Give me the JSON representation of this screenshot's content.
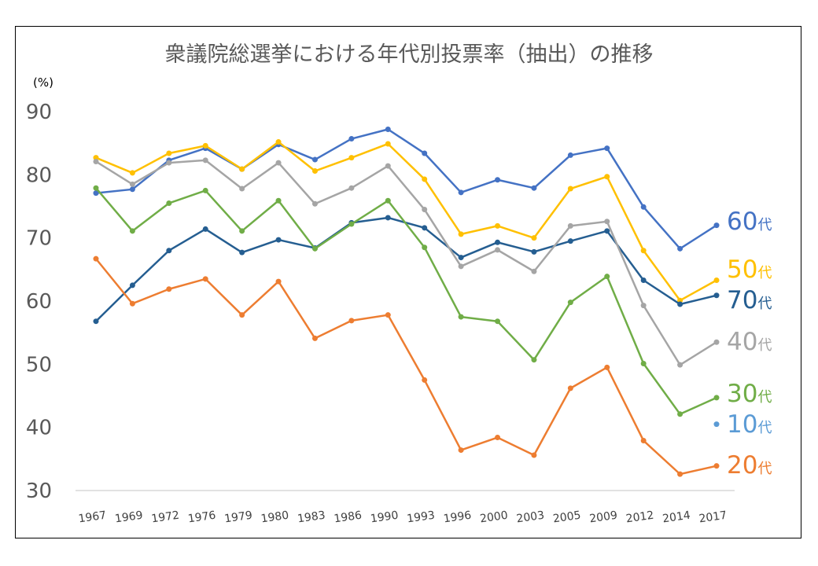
{
  "chart_data": {
    "type": "line",
    "title": "衆議院総選挙における年代別投票率（抽出）の推移",
    "ylabel": "(%)",
    "xlabel": "",
    "ylim": [
      30,
      90
    ],
    "yticks": [
      30,
      40,
      50,
      60,
      70,
      80,
      90
    ],
    "grid": false,
    "legend": "labels at line ends (right)",
    "categories": [
      "1967",
      "1969",
      "1972",
      "1976",
      "1979",
      "1980",
      "1983",
      "1986",
      "1990",
      "1993",
      "1996",
      "2000",
      "2003",
      "2005",
      "2009",
      "2012",
      "2014",
      "2017"
    ],
    "series": [
      {
        "name": "60代",
        "color": "#4472C4",
        "values": [
          77.1,
          77.7,
          82.3,
          84.2,
          80.9,
          84.8,
          82.4,
          85.7,
          87.2,
          83.4,
          77.2,
          79.2,
          77.9,
          83.1,
          84.2,
          74.9,
          68.3,
          72.0
        ]
      },
      {
        "name": "50代",
        "color": "#FFC000",
        "values": [
          82.7,
          80.3,
          83.4,
          84.6,
          80.9,
          85.2,
          80.6,
          82.7,
          84.9,
          79.3,
          70.6,
          71.9,
          70.0,
          77.8,
          79.7,
          68.0,
          60.1,
          63.3
        ]
      },
      {
        "name": "70代",
        "color": "#255E91",
        "values": [
          56.8,
          62.5,
          68.0,
          71.4,
          67.7,
          69.7,
          68.4,
          72.4,
          73.2,
          71.6,
          66.9,
          69.3,
          67.8,
          69.5,
          71.1,
          63.3,
          59.5,
          60.9
        ]
      },
      {
        "name": "40代",
        "color": "#A5A5A5",
        "values": [
          82.1,
          78.5,
          81.9,
          82.3,
          77.8,
          81.9,
          75.4,
          77.9,
          81.4,
          74.5,
          65.5,
          68.1,
          64.7,
          71.9,
          72.6,
          59.3,
          49.9,
          53.5
        ]
      },
      {
        "name": "30代",
        "color": "#70AD47",
        "values": [
          77.9,
          71.1,
          75.5,
          77.5,
          71.1,
          75.9,
          68.3,
          72.2,
          75.9,
          68.5,
          57.5,
          56.8,
          50.7,
          59.8,
          63.9,
          50.1,
          42.1,
          44.7
        ]
      },
      {
        "name": "10代",
        "color": "#5B9BD5",
        "values": [
          null,
          null,
          null,
          null,
          null,
          null,
          null,
          null,
          null,
          null,
          null,
          null,
          null,
          null,
          null,
          null,
          null,
          40.5
        ]
      },
      {
        "name": "20代",
        "color": "#ED7D31",
        "values": [
          66.7,
          59.6,
          61.9,
          63.5,
          57.8,
          63.1,
          54.1,
          56.9,
          57.8,
          47.5,
          36.4,
          38.4,
          35.6,
          46.2,
          49.5,
          37.9,
          32.6,
          33.9
        ]
      }
    ]
  }
}
